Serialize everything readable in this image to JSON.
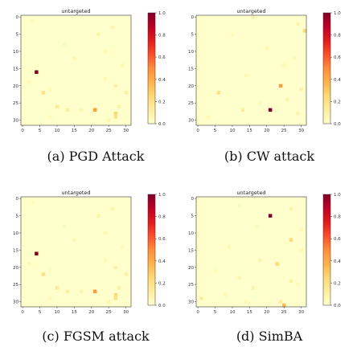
{
  "colormap": {
    "name": "YlOrRd",
    "stops": [
      "#ffffcc",
      "#ffeda0",
      "#fed976",
      "#feb24c",
      "#fd8d3c",
      "#fc4e2a",
      "#e31a1c",
      "#bd0026",
      "#800026"
    ],
    "background": "#ffffcc"
  },
  "chart_data": [
    {
      "type": "heatmap",
      "title": "untargeted",
      "caption": "(a) PGD Attack",
      "grid_size": 32,
      "xlim": [
        0,
        31
      ],
      "ylim": [
        0,
        31
      ],
      "xticks": [
        0,
        5,
        10,
        15,
        20,
        25,
        30
      ],
      "yticks": [
        0,
        5,
        10,
        15,
        20,
        25,
        30
      ],
      "colorbar_ticks": [
        "0.0",
        "0.2",
        "0.4",
        "0.6",
        "0.8",
        "1.0"
      ],
      "vmin": 0,
      "vmax": 1,
      "cells": [
        {
          "row": 16,
          "col": 4,
          "value": 1.0
        },
        {
          "row": 27,
          "col": 21,
          "value": 0.45
        },
        {
          "row": 28,
          "col": 27,
          "value": 0.25
        },
        {
          "row": 29,
          "col": 27,
          "value": 0.2
        },
        {
          "row": 22,
          "col": 6,
          "value": 0.2
        },
        {
          "row": 26,
          "col": 10,
          "value": 0.15
        },
        {
          "row": 27,
          "col": 13,
          "value": 0.12
        },
        {
          "row": 20,
          "col": 27,
          "value": 0.1
        },
        {
          "row": 26,
          "col": 28,
          "value": 0.1
        },
        {
          "row": 22,
          "col": 30,
          "value": 0.1
        },
        {
          "row": 5,
          "col": 22,
          "value": 0.08
        },
        {
          "row": 3,
          "col": 26,
          "value": 0.08
        },
        {
          "row": 30,
          "col": 25,
          "value": 0.08
        },
        {
          "row": 27,
          "col": 17,
          "value": 0.07
        },
        {
          "row": 19,
          "col": 2,
          "value": 0.06
        },
        {
          "row": 12,
          "col": 15,
          "value": 0.06
        },
        {
          "row": 10,
          "col": 24,
          "value": 0.06
        },
        {
          "row": 21,
          "col": 8,
          "value": 0.05
        },
        {
          "row": 14,
          "col": 29,
          "value": 0.05
        },
        {
          "row": 8,
          "col": 12,
          "value": 0.05
        },
        {
          "row": 1,
          "col": 3,
          "value": 0.05
        },
        {
          "row": 29,
          "col": 8,
          "value": 0.05
        },
        {
          "row": 18,
          "col": 24,
          "value": 0.05
        }
      ]
    },
    {
      "type": "heatmap",
      "title": "untargeted",
      "caption": "(b) CW attack",
      "grid_size": 32,
      "xlim": [
        0,
        31
      ],
      "ylim": [
        0,
        31
      ],
      "xticks": [
        0,
        5,
        10,
        15,
        20,
        25,
        30
      ],
      "yticks": [
        0,
        5,
        10,
        15,
        20,
        25,
        30
      ],
      "colorbar_ticks": [
        "0.0",
        "0.2",
        "0.4",
        "0.6",
        "0.8",
        "1.0"
      ],
      "vmin": 0,
      "vmax": 1,
      "cells": [
        {
          "row": 27,
          "col": 21,
          "value": 1.0
        },
        {
          "row": 20,
          "col": 24,
          "value": 0.45
        },
        {
          "row": 4,
          "col": 31,
          "value": 0.25
        },
        {
          "row": 22,
          "col": 6,
          "value": 0.2
        },
        {
          "row": 27,
          "col": 13,
          "value": 0.12
        },
        {
          "row": 0,
          "col": 16,
          "value": 0.1
        },
        {
          "row": 21,
          "col": 30,
          "value": 0.1
        },
        {
          "row": 2,
          "col": 29,
          "value": 0.08
        },
        {
          "row": 24,
          "col": 26,
          "value": 0.08
        },
        {
          "row": 28,
          "col": 29,
          "value": 0.07
        },
        {
          "row": 9,
          "col": 20,
          "value": 0.06
        },
        {
          "row": 14,
          "col": 25,
          "value": 0.06
        },
        {
          "row": 5,
          "col": 10,
          "value": 0.05
        },
        {
          "row": 29,
          "col": 3,
          "value": 0.05
        },
        {
          "row": 17,
          "col": 14,
          "value": 0.05
        },
        {
          "row": 12,
          "col": 28,
          "value": 0.05
        },
        {
          "row": 25,
          "col": 18,
          "value": 0.05
        }
      ]
    },
    {
      "type": "heatmap",
      "title": "untargeted",
      "caption": "(c) FGSM attack",
      "grid_size": 32,
      "xlim": [
        0,
        31
      ],
      "ylim": [
        0,
        31
      ],
      "xticks": [
        0,
        5,
        10,
        15,
        20,
        25,
        30
      ],
      "yticks": [
        0,
        5,
        10,
        15,
        20,
        25,
        30
      ],
      "colorbar_ticks": [
        "0.0",
        "0.2",
        "0.4",
        "0.6",
        "0.8",
        "1.0"
      ],
      "vmin": 0,
      "vmax": 1,
      "cells": [
        {
          "row": 16,
          "col": 4,
          "value": 1.0
        },
        {
          "row": 27,
          "col": 21,
          "value": 0.45
        },
        {
          "row": 28,
          "col": 27,
          "value": 0.25
        },
        {
          "row": 29,
          "col": 27,
          "value": 0.2
        },
        {
          "row": 22,
          "col": 6,
          "value": 0.2
        },
        {
          "row": 26,
          "col": 10,
          "value": 0.15
        },
        {
          "row": 27,
          "col": 13,
          "value": 0.12
        },
        {
          "row": 20,
          "col": 27,
          "value": 0.1
        },
        {
          "row": 26,
          "col": 28,
          "value": 0.1
        },
        {
          "row": 22,
          "col": 30,
          "value": 0.1
        },
        {
          "row": 5,
          "col": 22,
          "value": 0.08
        },
        {
          "row": 3,
          "col": 26,
          "value": 0.08
        },
        {
          "row": 30,
          "col": 25,
          "value": 0.08
        },
        {
          "row": 27,
          "col": 17,
          "value": 0.07
        },
        {
          "row": 19,
          "col": 2,
          "value": 0.06
        },
        {
          "row": 12,
          "col": 15,
          "value": 0.06
        },
        {
          "row": 10,
          "col": 24,
          "value": 0.06
        },
        {
          "row": 21,
          "col": 8,
          "value": 0.05
        },
        {
          "row": 14,
          "col": 29,
          "value": 0.05
        },
        {
          "row": 8,
          "col": 12,
          "value": 0.05
        },
        {
          "row": 1,
          "col": 3,
          "value": 0.05
        },
        {
          "row": 29,
          "col": 8,
          "value": 0.05
        },
        {
          "row": 18,
          "col": 24,
          "value": 0.05
        }
      ]
    },
    {
      "type": "heatmap",
      "title": "untargeted",
      "caption": "(d) SimBA",
      "grid_size": 32,
      "xlim": [
        0,
        31
      ],
      "ylim": [
        0,
        31
      ],
      "xticks": [
        0,
        5,
        10,
        15,
        20,
        25,
        30
      ],
      "yticks": [
        0,
        5,
        10,
        15,
        20,
        25,
        30
      ],
      "colorbar_ticks": [
        "0.0",
        "0.2",
        "0.4",
        "0.6",
        "0.8",
        "1.0"
      ],
      "vmin": 0,
      "vmax": 1,
      "cells": [
        {
          "row": 5,
          "col": 21,
          "value": 1.0
        },
        {
          "row": 12,
          "col": 27,
          "value": 0.25
        },
        {
          "row": 19,
          "col": 23,
          "value": 0.25
        },
        {
          "row": 31,
          "col": 25,
          "value": 0.35
        },
        {
          "row": 30,
          "col": 24,
          "value": 0.12
        },
        {
          "row": 29,
          "col": 1,
          "value": 0.12
        },
        {
          "row": 24,
          "col": 27,
          "value": 0.1
        },
        {
          "row": 18,
          "col": 18,
          "value": 0.08
        },
        {
          "row": 23,
          "col": 12,
          "value": 0.08
        },
        {
          "row": 26,
          "col": 16,
          "value": 0.08
        },
        {
          "row": 3,
          "col": 27,
          "value": 0.08
        },
        {
          "row": 9,
          "col": 30,
          "value": 0.06
        },
        {
          "row": 15,
          "col": 30,
          "value": 0.06
        },
        {
          "row": 28,
          "col": 8,
          "value": 0.06
        },
        {
          "row": 21,
          "col": 5,
          "value": 0.05
        },
        {
          "row": 2,
          "col": 12,
          "value": 0.05
        },
        {
          "row": 14,
          "col": 9,
          "value": 0.05
        },
        {
          "row": 8,
          "col": 17,
          "value": 0.05
        },
        {
          "row": 25,
          "col": 29,
          "value": 0.05
        },
        {
          "row": 30,
          "col": 14,
          "value": 0.05
        }
      ]
    }
  ]
}
